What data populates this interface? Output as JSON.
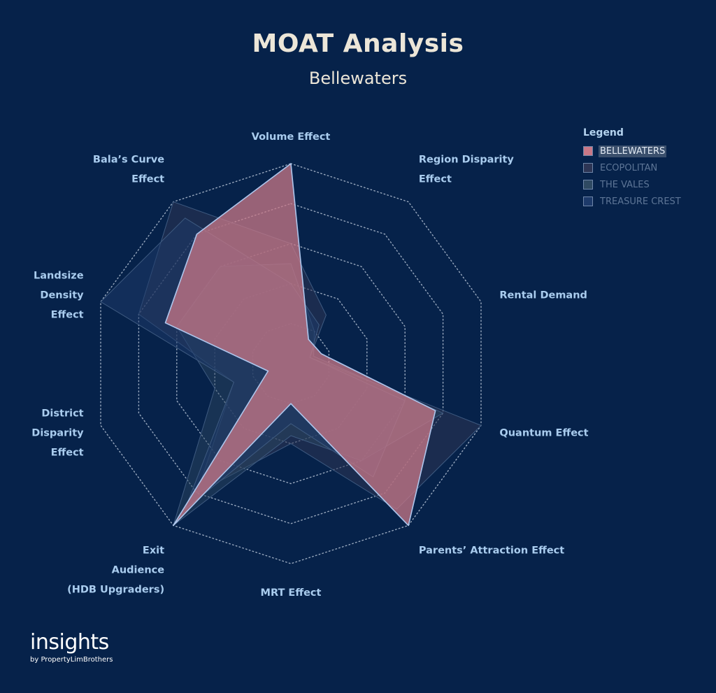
{
  "chart_data": {
    "type": "radar",
    "title": "MOAT Analysis",
    "subtitle": "Bellewaters",
    "axes": [
      "Volume Effect",
      "Region Disparity Effect",
      "Rental Demand",
      "Quantum Effect",
      "Parents’ Attraction Effect",
      "MRT Effect",
      "Exit Audience (HDB Upgraders)",
      "District Disparity Effect",
      "Landsize Density Effect",
      "Bala’s Curve Effect"
    ],
    "axis_label_lines": [
      [
        "Volume Effect"
      ],
      [
        "Region Disparity",
        "Effect"
      ],
      [
        "Rental Demand"
      ],
      [
        "Quantum Effect"
      ],
      [
        "Parents’ Attraction Effect"
      ],
      [
        "MRT Effect"
      ],
      [
        "Exit",
        "Audience",
        "(HDB Upgraders)"
      ],
      [
        "District",
        "Disparity",
        "Effect"
      ],
      [
        "Landsize",
        "Density",
        "Effect"
      ],
      [
        "Bala’s Curve",
        "Effect"
      ]
    ],
    "rlim": [
      0,
      5
    ],
    "grid_rings": 5,
    "legend_title": "Legend",
    "legend_position": "top-right",
    "highlighted_series": "BELLEWATERS",
    "series": [
      {
        "name": "BELLEWATERS",
        "color": "#c97887",
        "opacity": 0.75,
        "values": [
          5.0,
          0.75,
          0.8,
          3.8,
          5.0,
          1.0,
          5.0,
          0.6,
          3.3,
          4.0
        ]
      },
      {
        "name": "ECOPOLITAN",
        "color": "#2d3554",
        "opacity": 0.55,
        "values": [
          3.0,
          1.5,
          0.5,
          5.0,
          4.5,
          2.0,
          4.0,
          1.5,
          4.0,
          5.0
        ]
      },
      {
        "name": "THE VALES",
        "color": "#2f4a62",
        "opacity": 0.45,
        "values": [
          2.5,
          1.0,
          0.6,
          4.0,
          3.0,
          1.8,
          5.0,
          2.0,
          3.0,
          3.0
        ]
      },
      {
        "name": "TREASURE CREST",
        "color": "#1d3a6a",
        "opacity": 0.5,
        "values": [
          2.0,
          1.2,
          0.5,
          3.0,
          3.5,
          1.5,
          4.5,
          1.5,
          5.0,
          4.5
        ]
      }
    ]
  },
  "branding": {
    "main": "insights",
    "sub": "by PropertyLimBrothers"
  }
}
